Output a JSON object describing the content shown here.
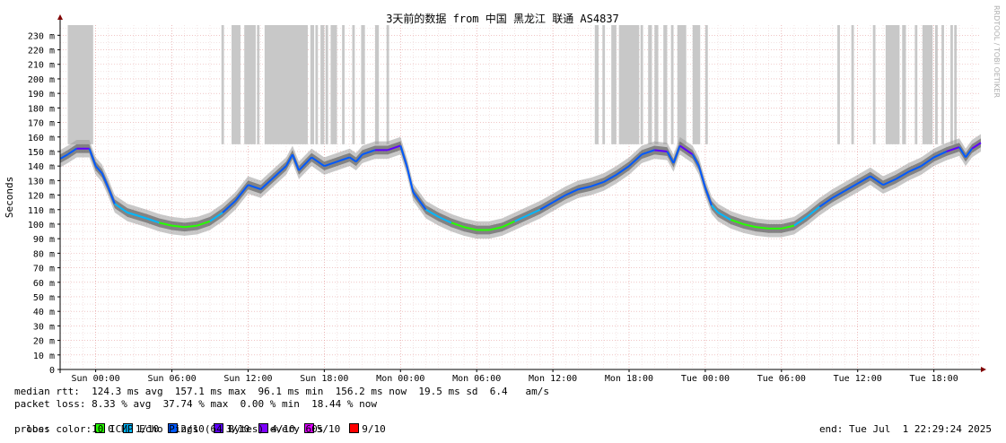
{
  "chart_data": {
    "type": "line",
    "title": "3天前的数据 from 中国 黑龙江 联通 AS4837",
    "ylabel": "Seconds",
    "watermark": "RRDTOOL / TOBI OETIKER",
    "ylim": [
      0,
      237
    ],
    "y_ticks": [
      {
        "v": 0,
        "label": "0"
      },
      {
        "v": 10,
        "label": "10 m"
      },
      {
        "v": 20,
        "label": "20 m"
      },
      {
        "v": 30,
        "label": "30 m"
      },
      {
        "v": 40,
        "label": "40 m"
      },
      {
        "v": 50,
        "label": "50 m"
      },
      {
        "v": 60,
        "label": "60 m"
      },
      {
        "v": 70,
        "label": "70 m"
      },
      {
        "v": 80,
        "label": "80 m"
      },
      {
        "v": 90,
        "label": "90 m"
      },
      {
        "v": 100,
        "label": "100 m"
      },
      {
        "v": 110,
        "label": "110 m"
      },
      {
        "v": 120,
        "label": "120 m"
      },
      {
        "v": 130,
        "label": "130 m"
      },
      {
        "v": 140,
        "label": "140 m"
      },
      {
        "v": 150,
        "label": "150 m"
      },
      {
        "v": 160,
        "label": "160 m"
      },
      {
        "v": 170,
        "label": "170 m"
      },
      {
        "v": 180,
        "label": "180 m"
      },
      {
        "v": 190,
        "label": "190 m"
      },
      {
        "v": 200,
        "label": "200 m"
      },
      {
        "v": 210,
        "label": "210 m"
      },
      {
        "v": 220,
        "label": "220 m"
      },
      {
        "v": 230,
        "label": "230 m"
      }
    ],
    "xlim_hours": [
      -2.8,
      69.7
    ],
    "x_ticks": [
      {
        "h": 0,
        "label": "Sun 00:00"
      },
      {
        "h": 6,
        "label": "Sun 06:00"
      },
      {
        "h": 12,
        "label": "Sun 12:00"
      },
      {
        "h": 18,
        "label": "Sun 18:00"
      },
      {
        "h": 24,
        "label": "Mon 00:00"
      },
      {
        "h": 30,
        "label": "Mon 06:00"
      },
      {
        "h": 36,
        "label": "Mon 12:00"
      },
      {
        "h": 42,
        "label": "Mon 18:00"
      },
      {
        "h": 48,
        "label": "Tue 00:00"
      },
      {
        "h": 54,
        "label": "Tue 06:00"
      },
      {
        "h": 60,
        "label": "Tue 12:00"
      },
      {
        "h": 66,
        "label": "Tue 18:00"
      }
    ],
    "median_rtt": [
      [
        -2.8,
        145
      ],
      [
        -2.2,
        148
      ],
      [
        -1.5,
        152
      ],
      [
        -0.5,
        152
      ],
      [
        0,
        140
      ],
      [
        0.5,
        135
      ],
      [
        1,
        125
      ],
      [
        1.5,
        114
      ],
      [
        2.5,
        108
      ],
      [
        4,
        104
      ],
      [
        5,
        101
      ],
      [
        6,
        99
      ],
      [
        7,
        98
      ],
      [
        8,
        99
      ],
      [
        9,
        102
      ],
      [
        10,
        108
      ],
      [
        11,
        116
      ],
      [
        12,
        127
      ],
      [
        13,
        124
      ],
      [
        14,
        132
      ],
      [
        15,
        140
      ],
      [
        15.5,
        148
      ],
      [
        16,
        137
      ],
      [
        17,
        146
      ],
      [
        18,
        140
      ],
      [
        19,
        143
      ],
      [
        20,
        146
      ],
      [
        20.5,
        143
      ],
      [
        21,
        148
      ],
      [
        22,
        151
      ],
      [
        23,
        151
      ],
      [
        24,
        154
      ],
      [
        24.5,
        140
      ],
      [
        25,
        122
      ],
      [
        26,
        110
      ],
      [
        27,
        105
      ],
      [
        28,
        101
      ],
      [
        29,
        98
      ],
      [
        30,
        96
      ],
      [
        31,
        96
      ],
      [
        32,
        98
      ],
      [
        33,
        102
      ],
      [
        34,
        106
      ],
      [
        35,
        110
      ],
      [
        36,
        115
      ],
      [
        37,
        120
      ],
      [
        38,
        124
      ],
      [
        39,
        126
      ],
      [
        40,
        129
      ],
      [
        41,
        134
      ],
      [
        42,
        140
      ],
      [
        43,
        148
      ],
      [
        44,
        151
      ],
      [
        45,
        150
      ],
      [
        45.5,
        142
      ],
      [
        46,
        154
      ],
      [
        47,
        148
      ],
      [
        47.5,
        140
      ],
      [
        48,
        125
      ],
      [
        48.5,
        113
      ],
      [
        49,
        108
      ],
      [
        50,
        103
      ],
      [
        51,
        100
      ],
      [
        52,
        98
      ],
      [
        53,
        97
      ],
      [
        54,
        97
      ],
      [
        55,
        99
      ],
      [
        56,
        105
      ],
      [
        57,
        112
      ],
      [
        58,
        118
      ],
      [
        59,
        123
      ],
      [
        60,
        128
      ],
      [
        61,
        133
      ],
      [
        62,
        127
      ],
      [
        63,
        131
      ],
      [
        64,
        136
      ],
      [
        65,
        140
      ],
      [
        66,
        146
      ],
      [
        67,
        150
      ],
      [
        68,
        153
      ],
      [
        68.5,
        146
      ],
      [
        69,
        152
      ],
      [
        69.7,
        156
      ]
    ],
    "loss_spans_hours": [
      [
        -2.2,
        -0.2
      ],
      [
        9.9,
        10.1
      ],
      [
        10.7,
        11.4
      ],
      [
        11.7,
        12.6
      ],
      [
        12.7,
        12.9
      ],
      [
        13.3,
        16.7
      ],
      [
        16.9,
        17.2
      ],
      [
        17.3,
        17.5
      ],
      [
        17.7,
        18.0
      ],
      [
        18.1,
        18.3
      ],
      [
        18.5,
        19.0
      ],
      [
        19.4,
        19.6
      ],
      [
        20.2,
        20.4
      ],
      [
        20.9,
        21.2
      ],
      [
        22.0,
        22.3
      ],
      [
        22.9,
        23.1
      ],
      [
        39.3,
        39.6
      ],
      [
        39.9,
        40.1
      ],
      [
        40.6,
        41.0
      ],
      [
        41.2,
        42.8
      ],
      [
        42.9,
        43.1
      ],
      [
        43.5,
        43.8
      ],
      [
        44.0,
        44.3
      ],
      [
        44.7,
        45.0
      ],
      [
        45.3,
        45.5
      ],
      [
        45.8,
        46.5
      ],
      [
        47.0,
        47.6
      ],
      [
        48.0,
        48.2
      ],
      [
        58.4,
        58.6
      ],
      [
        59.5,
        59.7
      ],
      [
        61.2,
        61.4
      ],
      [
        62.2,
        63.3
      ],
      [
        63.5,
        63.8
      ],
      [
        64.5,
        64.7
      ],
      [
        65.1,
        65.9
      ],
      [
        66.1,
        66.3
      ],
      [
        66.6,
        66.8
      ],
      [
        67.3,
        67.5
      ],
      [
        67.6,
        67.8
      ]
    ],
    "loss_colors": [
      {
        "label": "0",
        "color": "#26ff00"
      },
      {
        "label": "1/10",
        "color": "#00b8ff"
      },
      {
        "label": "2/10",
        "color": "#0059ff"
      },
      {
        "label": "3/10",
        "color": "#5e00ff"
      },
      {
        "label": "4/10",
        "color": "#7e00ff"
      },
      {
        "label": "5/10",
        "color": "#dd00ff"
      },
      {
        "label": "9/10",
        "color": "#ff0000"
      }
    ]
  },
  "stats": {
    "median_rtt": "median rtt:  124.3 ms avg  157.1 ms max  96.1 ms min  156.2 ms now  19.5 ms sd  6.4   am/s",
    "packet_loss": "packet loss: 8.33 % avg  37.74 % max  0.00 % min  18.44 % now",
    "loss_color_label": "loss color:",
    "probe": "probe:       10 ICMP Echo Pings (64 Bytes) every 60s",
    "end": "end: Tue Jul  1 22:29:24 2025"
  }
}
